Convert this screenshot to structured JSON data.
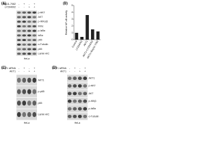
{
  "blots": [
    {
      "label": "(A)",
      "treatments": [
        {
          "name": "Bay11-7082",
          "signs": [
            "-",
            "+",
            "-",
            "+"
          ]
        },
        {
          "name": "LY294002",
          "signs": [
            "-",
            "-",
            "+",
            "+"
          ]
        }
      ],
      "rows": [
        "p-AKT",
        "AKT",
        "p-IKKα/β",
        "IKKα",
        "p-IκBα",
        "IκBα",
        "p65",
        "α-Tubulin",
        "p65",
        "Lamin A/C"
      ],
      "cell": "HeLa"
    },
    {
      "label": "(C)",
      "treatments": [
        {
          "name": "AKT1 siRNA",
          "signs": [
            "-",
            "+",
            "-",
            "+"
          ]
        },
        {
          "name": "AKT1",
          "signs": [
            "-",
            "-",
            "+",
            "+"
          ]
        }
      ],
      "rows": [
        "AKT1",
        "p-p65",
        "p65",
        "Lamin A/C"
      ],
      "cell": "HeLa"
    },
    {
      "label": "(D)",
      "treatments": [
        {
          "name": "AKT1 siRNA",
          "signs": [
            "-",
            "+",
            "-",
            "+"
          ]
        },
        {
          "name": "AKT1",
          "signs": [
            "-",
            "-",
            "+",
            "+"
          ]
        }
      ],
      "rows": [
        "AKT1",
        "p-AKT",
        "AKT",
        "p-IKKβ",
        "p-IκBα",
        "α-Tubulin"
      ],
      "cell": "HeLa"
    }
  ],
  "chart_data": {
    "type": "bar",
    "label": "(B)",
    "y_label": "Relative NF-κB activity",
    "categories": [
      "Control",
      "LY294002",
      "AKT1",
      "AKT1+LY294002",
      "AKT1+Bay11-7082"
    ],
    "values": [
      1.0,
      0.4,
      3.6,
      1.5,
      1.2
    ],
    "color": "#222222",
    "ylim": [
      0,
      5
    ],
    "yticks": [
      0,
      1,
      2,
      3,
      4,
      5
    ]
  }
}
